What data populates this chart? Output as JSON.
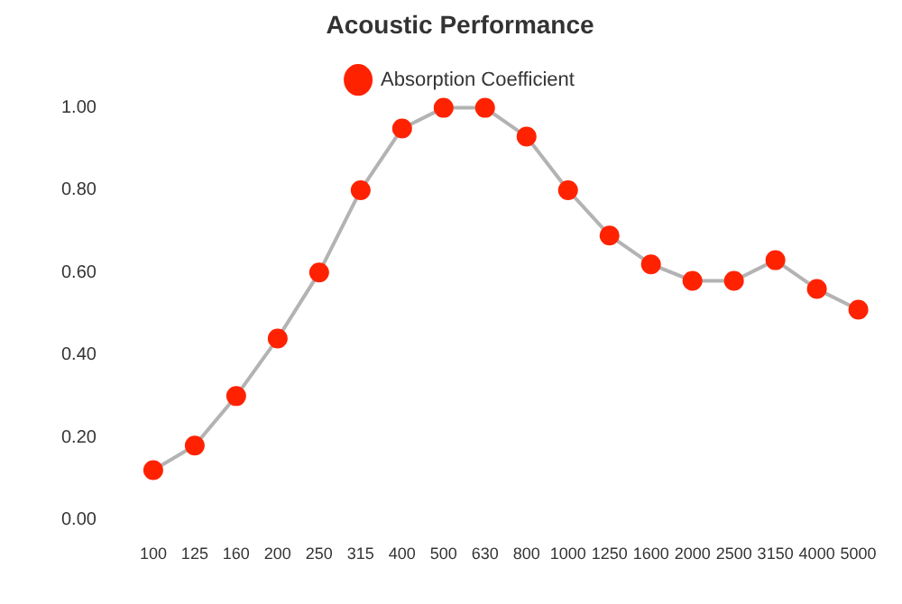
{
  "chart_data": {
    "type": "line",
    "title": "Acoustic Performance",
    "categories": [
      "100",
      "125",
      "160",
      "200",
      "250",
      "315",
      "400",
      "500",
      "630",
      "800",
      "1000",
      "1250",
      "1600",
      "2000",
      "2500",
      "3150",
      "4000",
      "5000"
    ],
    "series": [
      {
        "name": "Absorption Coefficient",
        "color": "#ff2200",
        "values": [
          0.12,
          0.18,
          0.3,
          0.44,
          0.6,
          0.8,
          0.95,
          1.0,
          1.0,
          0.93,
          0.8,
          0.69,
          0.62,
          0.58,
          0.58,
          0.63,
          0.56,
          0.51
        ]
      }
    ],
    "ylim": [
      0,
      1
    ],
    "yticks": [
      {
        "value": 0,
        "label": "0.00"
      },
      {
        "value": 0.2,
        "label": "0.20"
      },
      {
        "value": 0.4,
        "label": "0.40"
      },
      {
        "value": 0.6,
        "label": "0.60"
      },
      {
        "value": 0.8,
        "label": "0.80"
      },
      {
        "value": 1,
        "label": "1.00"
      }
    ],
    "grid": false,
    "legend": "top",
    "marker": "circle",
    "line_style": "solid"
  }
}
